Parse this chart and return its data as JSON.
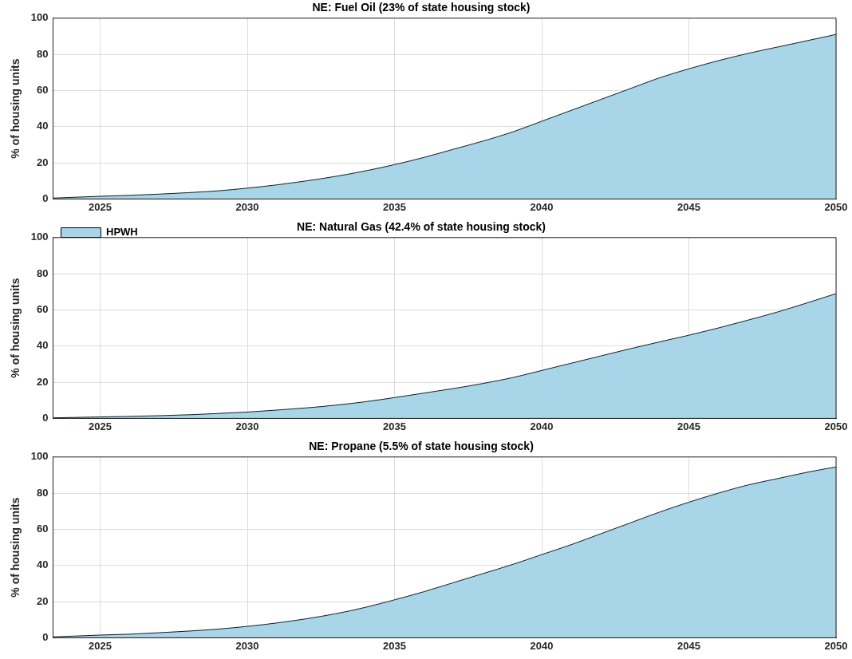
{
  "chart_data": [
    {
      "type": "area",
      "title": "NE: Fuel Oil (23% of state housing stock)",
      "ylabel": "% of housing units",
      "x": [
        2023.4,
        2025,
        2026,
        2027,
        2028,
        2029,
        2030,
        2031,
        2032,
        2033,
        2034,
        2035,
        2036,
        2037,
        2038,
        2039,
        2040,
        2041,
        2042,
        2043,
        2044,
        2045,
        2046,
        2047,
        2048,
        2049,
        2050
      ],
      "series": [
        {
          "color": "#a8d5e7",
          "values": [
            0.5,
            1.5,
            2,
            2.7,
            3.5,
            4.5,
            6,
            7.8,
            10,
            12.5,
            15.5,
            19,
            23,
            27.5,
            32,
            37,
            43,
            49,
            55,
            61,
            67,
            72,
            76.5,
            80.5,
            84,
            87.5,
            91
          ]
        }
      ],
      "xlim": [
        2023.4,
        2050
      ],
      "xticks": [
        2025,
        2030,
        2035,
        2040,
        2045,
        2050
      ],
      "ylim": [
        0,
        100
      ],
      "yticks": [
        0,
        20,
        40,
        60,
        80,
        100
      ],
      "grid": true,
      "marker": "none",
      "line_style": "solid"
    },
    {
      "type": "area",
      "title": "NE: Natural Gas (42.4% of state housing stock)",
      "ylabel": "% of housing units",
      "x": [
        2023.4,
        2025,
        2026,
        2027,
        2028,
        2029,
        2030,
        2031,
        2032,
        2033,
        2034,
        2035,
        2036,
        2037,
        2038,
        2039,
        2040,
        2041,
        2042,
        2043,
        2044,
        2045,
        2046,
        2047,
        2048,
        2049,
        2050
      ],
      "series": [
        {
          "name": "HPWH",
          "color": "#a8d5e7",
          "values": [
            0.3,
            0.8,
            1.1,
            1.5,
            2,
            2.7,
            3.5,
            4.6,
            5.8,
            7.3,
            9.2,
            11.5,
            14,
            16.5,
            19.3,
            22.5,
            26.5,
            30.5,
            34.5,
            38.5,
            42.3,
            46,
            50,
            54.3,
            58.8,
            63.8,
            69
          ]
        }
      ],
      "xlim": [
        2023.4,
        2050
      ],
      "xticks": [
        2025,
        2030,
        2035,
        2040,
        2045,
        2050
      ],
      "ylim": [
        0,
        100
      ],
      "yticks": [
        0,
        20,
        40,
        60,
        80,
        100
      ],
      "grid": true,
      "legend": "top left",
      "marker": "none",
      "line_style": "solid"
    },
    {
      "type": "area",
      "title": "NE: Propane (5.5% of state housing stock)",
      "ylabel": "% of housing units",
      "x": [
        2023.4,
        2025,
        2026,
        2027,
        2028,
        2029,
        2030,
        2031,
        2032,
        2033,
        2034,
        2035,
        2036,
        2037,
        2038,
        2039,
        2040,
        2041,
        2042,
        2043,
        2044,
        2045,
        2046,
        2047,
        2048,
        2049,
        2050
      ],
      "series": [
        {
          "color": "#a8d5e7",
          "values": [
            0.5,
            1.5,
            2,
            2.8,
            3.7,
            4.8,
            6.3,
            8.2,
            10.5,
            13.3,
            16.8,
            21,
            25.5,
            30.5,
            35.5,
            40.5,
            46,
            51.5,
            57.5,
            63.5,
            69.5,
            75,
            80,
            84.5,
            88,
            91.5,
            94.5
          ]
        }
      ],
      "xlim": [
        2023.4,
        2050
      ],
      "xticks": [
        2025,
        2030,
        2035,
        2040,
        2045,
        2050
      ],
      "ylim": [
        0,
        100
      ],
      "yticks": [
        0,
        20,
        40,
        60,
        80,
        100
      ],
      "grid": true,
      "marker": "none",
      "line_style": "solid"
    }
  ]
}
